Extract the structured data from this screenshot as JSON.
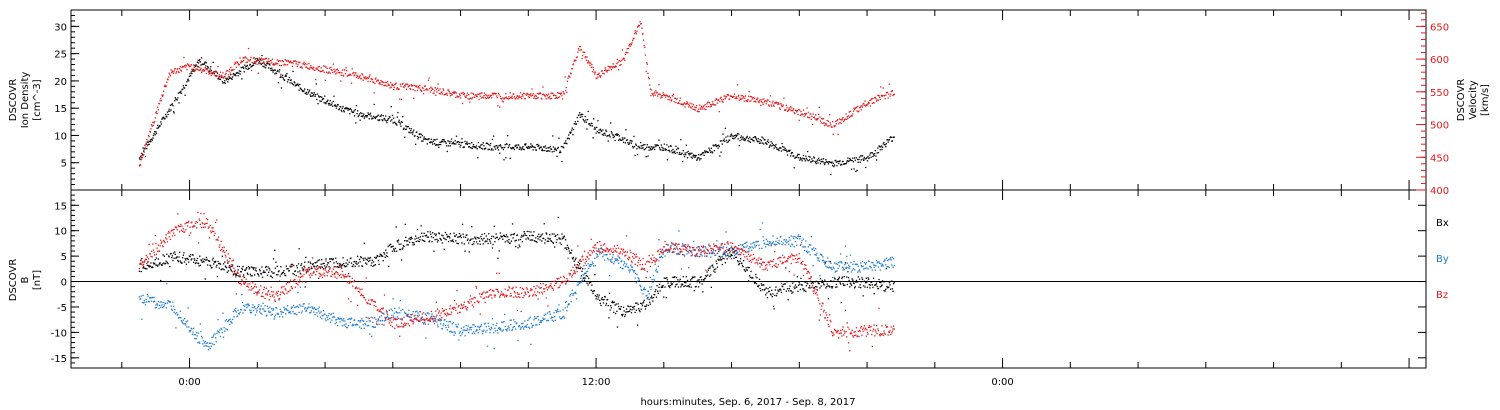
{
  "chart_data": [
    {
      "type": "scatter",
      "panel": "top",
      "ylabel": [
        "DSCOVR",
        "Ion Density",
        "[cm^-3]"
      ],
      "ylabel_right": [
        "DSCOVR",
        "Velocity",
        "[km/s]"
      ],
      "ylim_left": [
        0,
        33
      ],
      "ylim_right": [
        400,
        675
      ],
      "yticks_left": [
        "5",
        "10",
        "15",
        "20",
        "25",
        "30"
      ],
      "yticks_right": [
        "400",
        "450",
        "500",
        "550",
        "600",
        "650"
      ],
      "series": [
        {
          "color": "#000000",
          "axis": "left",
          "x": [
            -1.5,
            -0.6,
            0.3,
            1.0,
            2.0,
            2.5,
            3.2,
            3.8,
            4.5,
            5.0,
            6.0,
            7.0,
            8.0,
            9.0,
            10.0,
            11.0,
            11.5,
            12.0,
            12.6,
            13.2,
            14.0,
            15.0,
            16.0,
            17.0,
            18.0,
            19.0,
            20.0,
            20.8
          ],
          "y": [
            6,
            15,
            24,
            20,
            24,
            22,
            19,
            17,
            15,
            14,
            13,
            9,
            8.5,
            8,
            8,
            7.5,
            14,
            11,
            10,
            8,
            8,
            6,
            10,
            9,
            6,
            5,
            6,
            10
          ]
        },
        {
          "color": "#e31a1c",
          "axis": "right",
          "x": [
            -1.5,
            -0.6,
            0.0,
            1.0,
            1.5,
            2.0,
            3.0,
            4.0,
            5.0,
            6.0,
            7.0,
            8.0,
            9.0,
            10.0,
            11.0,
            11.5,
            12.0,
            12.8,
            13.3,
            13.6,
            14.0,
            15.0,
            16.0,
            17.0,
            18.0,
            19.0,
            20.0,
            20.8
          ],
          "y": [
            440,
            580,
            590,
            575,
            600,
            598,
            595,
            585,
            575,
            560,
            555,
            545,
            545,
            545,
            545,
            620,
            575,
            600,
            660,
            550,
            545,
            525,
            545,
            535,
            520,
            500,
            535,
            550
          ]
        }
      ],
      "xlim": [
        -3.5,
        36.5
      ],
      "grid": false
    },
    {
      "type": "scatter",
      "panel": "bottom",
      "ylabel": [
        "DSCOVR",
        "B",
        "[nT]"
      ],
      "ylim": [
        -17,
        18
      ],
      "yticks": [
        "-15",
        "-10",
        "-5",
        "0",
        "5",
        "10",
        "15"
      ],
      "zero_line": true,
      "legend": [
        "Bx",
        "By",
        "Bz"
      ],
      "legend_position": "right",
      "series": [
        {
          "name": "Bx",
          "color": "#000000",
          "x": [
            -1.5,
            -0.5,
            0.5,
            1.5,
            2.5,
            3.5,
            4.5,
            5.5,
            6.0,
            7.0,
            8.0,
            9.0,
            10.0,
            11.0,
            12.0,
            12.8,
            13.5,
            14.0,
            15.0,
            16.0,
            17.0,
            18.0,
            19.0,
            20.0,
            20.8
          ],
          "y": [
            3,
            5,
            4,
            2,
            2,
            3,
            4,
            4,
            7,
            9,
            8.5,
            8.5,
            9,
            8.5,
            -3,
            -6,
            -4,
            0,
            0,
            6,
            -2,
            -1,
            0,
            0,
            -1
          ]
        },
        {
          "name": "By",
          "color": "#1f7bd1",
          "x": [
            -1.5,
            -0.5,
            0.5,
            1.5,
            2.5,
            3.5,
            4.5,
            5.5,
            6.0,
            7.0,
            8.0,
            9.0,
            10.0,
            11.0,
            12.0,
            13.0,
            13.5,
            14.0,
            15.0,
            16.0,
            17.0,
            18.0,
            19.0,
            20.0,
            20.8
          ],
          "y": [
            -3,
            -5,
            -13,
            -5,
            -6,
            -5,
            -8,
            -8,
            -6,
            -7,
            -9.5,
            -9,
            -8,
            -6,
            6,
            3,
            -3,
            7,
            6,
            6,
            8,
            8,
            3,
            3,
            4
          ]
        },
        {
          "name": "Bz",
          "color": "#e31a1c",
          "x": [
            -1.5,
            -0.5,
            0.5,
            1.5,
            2.5,
            3.5,
            4.5,
            5.5,
            6.0,
            7.0,
            8.0,
            9.0,
            10.0,
            11.0,
            12.0,
            12.8,
            13.5,
            14.0,
            15.0,
            16.0,
            17.0,
            18.0,
            19.0,
            20.0,
            20.8
          ],
          "y": [
            3,
            10,
            12,
            0,
            -3,
            2,
            2,
            -5,
            -8,
            -7,
            -5,
            -2,
            -2,
            0,
            7,
            6,
            3,
            7,
            6,
            7,
            3,
            5,
            -10,
            -9.5,
            -9.5
          ]
        }
      ],
      "xlim": [
        -3.5,
        36.5
      ],
      "grid": false
    }
  ],
  "x_axis": {
    "tick_labels": [
      "0:00",
      "12:00",
      "0:00"
    ],
    "label": "hours:minutes, Sep. 6, 2017 - Sep. 8, 2017"
  }
}
